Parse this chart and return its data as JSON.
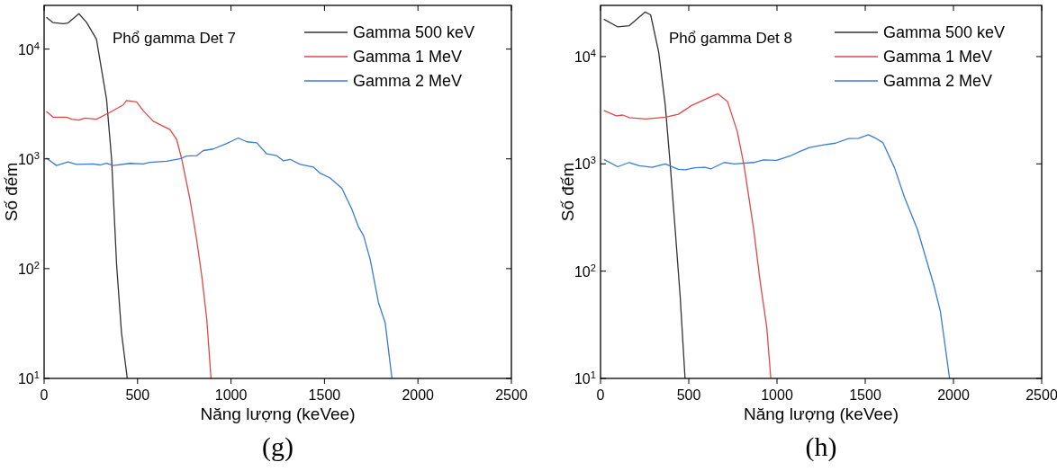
{
  "chart_data": [
    {
      "type": "line",
      "title": "Phổ gamma Det 7",
      "xlabel": "Năng lượng (keVee)",
      "ylabel": "Số đếm",
      "annotations": [
        "(g)"
      ],
      "log": "y",
      "legend": "top right",
      "xlim": [
        0,
        2500
      ],
      "xticks": [
        0,
        500,
        1000,
        1500,
        2000,
        2500
      ],
      "ylim": [
        10,
        25000
      ],
      "yticks": [
        {
          "value": 10,
          "label": "10$^{1}$"
        },
        {
          "value": 100,
          "label": "10$^{2}$"
        },
        {
          "value": 1000,
          "label": "10$^{3}$"
        },
        {
          "value": 10000,
          "label": "10$^{4}$"
        }
      ],
      "series": [
        {
          "name": "Gamma 500 keV",
          "color": "#333333",
          "x": [
            12,
            48,
            102,
            128,
            186,
            227,
            280,
            298,
            334,
            361,
            388,
            414,
            445
          ],
          "values": [
            19500,
            17400,
            17000,
            17300,
            21000,
            17500,
            12300,
            8100,
            3500,
            1000,
            107,
            26,
            10
          ]
        },
        {
          "name": "Gamma 1 MeV",
          "color": "#e04848",
          "x": [
            12,
            48,
            120,
            148,
            186,
            218,
            280,
            352,
            423,
            441,
            495,
            530,
            584,
            673,
            709,
            736,
            780,
            816,
            843,
            870,
            893
          ],
          "values": [
            2700,
            2400,
            2400,
            2300,
            2250,
            2350,
            2300,
            2650,
            3100,
            3400,
            3300,
            2750,
            2200,
            1850,
            1500,
            1000,
            430,
            185,
            87,
            35,
            10
          ]
        },
        {
          "name": "Gamma 2 MeV",
          "color": "#3a7bd5",
          "x": [
            12,
            66,
            128,
            173,
            262,
            298,
            334,
            370,
            459,
            530,
            566,
            655,
            727,
            762,
            816,
            852,
            905,
            977,
            1039,
            1084,
            1138,
            1191,
            1245,
            1280,
            1316,
            1370,
            1441,
            1477,
            1530,
            1593,
            1646,
            1682,
            1709,
            1745,
            1789,
            1825,
            1861
          ],
          "values": [
            1020,
            870,
            940,
            890,
            900,
            880,
            910,
            870,
            910,
            900,
            930,
            950,
            1000,
            1060,
            1070,
            1190,
            1230,
            1380,
            1550,
            1430,
            1400,
            1110,
            1070,
            960,
            990,
            890,
            840,
            740,
            670,
            540,
            350,
            240,
            200,
            120,
            49,
            32,
            10
          ]
        }
      ]
    },
    {
      "type": "line",
      "title": "Phổ gamma Det 8",
      "xlabel": "Năng lượng (keVee)",
      "ylabel": "Số đếm",
      "annotations": [
        "(h)"
      ],
      "log": "y",
      "legend": "top right",
      "xlim": [
        0,
        2500
      ],
      "xticks": [
        0,
        500,
        1000,
        1500,
        2000,
        2500
      ],
      "ylim": [
        10,
        30000
      ],
      "yticks": [
        {
          "value": 10,
          "label": "10$^{1}$"
        },
        {
          "value": 100,
          "label": "10$^{2}$"
        },
        {
          "value": 1000,
          "label": "10$^{3}$"
        },
        {
          "value": 10000,
          "label": "10$^{4}$"
        }
      ],
      "series": [
        {
          "name": "Gamma 500 keV",
          "color": "#333333",
          "x": [
            19,
            98,
            163,
            252,
            284,
            330,
            367,
            395,
            423,
            451,
            479
          ],
          "values": [
            22300,
            18900,
            19400,
            26000,
            24500,
            10900,
            3500,
            980,
            245,
            59,
            10
          ]
        },
        {
          "name": "Gamma 1 MeV",
          "color": "#e04848",
          "x": [
            19,
            89,
            126,
            163,
            256,
            367,
            441,
            516,
            608,
            664,
            720,
            775,
            813,
            868,
            905,
            942,
            965
          ],
          "values": [
            3150,
            2800,
            2850,
            2700,
            2620,
            2720,
            2900,
            3500,
            4100,
            4500,
            3800,
            2000,
            970,
            245,
            79,
            30,
            10
          ]
        },
        {
          "name": "Gamma 2 MeV",
          "color": "#3a7bd5",
          "x": [
            19,
            98,
            163,
            219,
            293,
            367,
            441,
            479,
            534,
            590,
            627,
            701,
            757,
            868,
            924,
            998,
            1072,
            1128,
            1184,
            1258,
            1332,
            1406,
            1462,
            1518,
            1555,
            1601,
            1666,
            1722,
            1796,
            1889,
            1926,
            1978
          ],
          "values": [
            1100,
            940,
            1030,
            960,
            930,
            1000,
            890,
            880,
            920,
            930,
            900,
            1030,
            1000,
            1030,
            1090,
            1080,
            1180,
            1300,
            1420,
            1500,
            1560,
            1720,
            1730,
            1870,
            1750,
            1570,
            920,
            490,
            245,
            74,
            42,
            10
          ]
        }
      ]
    }
  ]
}
